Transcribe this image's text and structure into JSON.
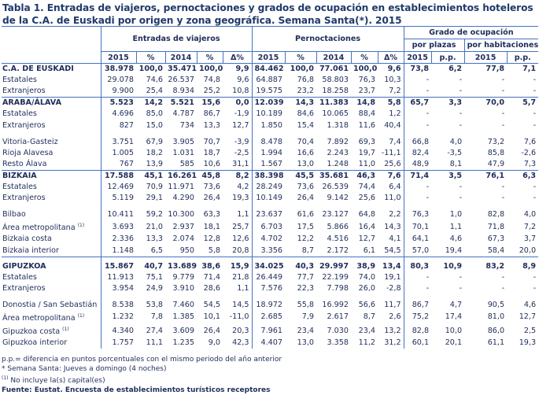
{
  "title": "Tabla 1. Entradas de viajeros, pernoctaciones y grados de ocupación en establecimientos hoteleros de la C.A. de Euskadi por origen y zona geográfica. Semana Santa(*). 2015",
  "headers": {
    "group1": "Entradas de viajeros",
    "group2": "Pernoctaciones",
    "group3": "Grado de ocupación",
    "sub1": "por plazas",
    "sub2": "por habitaciones",
    "cols": [
      "2015",
      "%",
      "2014",
      "%",
      "Δ%",
      "2015",
      "%",
      "2014",
      "%",
      "Δ%",
      "2015",
      "p.p.",
      "2015",
      "p.p."
    ]
  },
  "rows": [
    {
      "label": "C.A. DE EUSKADI",
      "bold": true,
      "values": [
        "38.978",
        "100,0",
        "35.471",
        "100,0",
        "9,9",
        "84.462",
        "100,0",
        "77.061",
        "100,0",
        "9,6",
        "73,8",
        "6,2",
        "77,8",
        "7,1"
      ]
    },
    {
      "label": "Estatales",
      "values": [
        "29.078",
        "74,6",
        "26.537",
        "74,8",
        "9,6",
        "64.887",
        "76,8",
        "58.803",
        "76,3",
        "10,3",
        "-",
        "-",
        "-",
        "-"
      ]
    },
    {
      "label": "Extranjeros",
      "values": [
        "9.900",
        "25,4",
        "8.934",
        "25,2",
        "10,8",
        "19.575",
        "23,2",
        "18.258",
        "23,7",
        "7,2",
        "-",
        "-",
        "-",
        "-"
      ]
    },
    {
      "label": "ARABA/ÁLAVA",
      "bold": true,
      "section": true,
      "values": [
        "5.523",
        "14,2",
        "5.521",
        "15,6",
        "0,0",
        "12.039",
        "14,3",
        "11.383",
        "14,8",
        "5,8",
        "65,7",
        "3,3",
        "70,0",
        "5,7"
      ]
    },
    {
      "label": "Estatales",
      "values": [
        "4.696",
        "85,0",
        "4.787",
        "86,7",
        "-1,9",
        "10.189",
        "84,6",
        "10.065",
        "88,4",
        "1,2",
        "-",
        "-",
        "-",
        "-"
      ]
    },
    {
      "label": "Extranjeros",
      "values": [
        "827",
        "15,0",
        "734",
        "13,3",
        "12,7",
        "1.850",
        "15,4",
        "1.318",
        "11,6",
        "40,4",
        "-",
        "-",
        "-",
        "-"
      ]
    },
    {
      "spacer": true
    },
    {
      "label": "Vitoria-Gasteiz",
      "values": [
        "3.751",
        "67,9",
        "3.905",
        "70,7",
        "-3,9",
        "8.478",
        "70,4",
        "7.892",
        "69,3",
        "7,4",
        "66,8",
        "4,0",
        "73,2",
        "7,6"
      ]
    },
    {
      "label": "Rioja Alavesa",
      "values": [
        "1.005",
        "18,2",
        "1.031",
        "18,7",
        "-2,5",
        "1.994",
        "16,6",
        "2.243",
        "19,7",
        "-11,1",
        "82,4",
        "-3,5",
        "85,8",
        "-2,6"
      ]
    },
    {
      "label": "Resto Álava",
      "values": [
        "767",
        "13,9",
        "585",
        "10,6",
        "31,1",
        "1.567",
        "13,0",
        "1.248",
        "11,0",
        "25,6",
        "48,9",
        "8,1",
        "47,9",
        "7,3"
      ]
    },
    {
      "label": "BIZKAIA",
      "bold": true,
      "section": true,
      "values": [
        "17.588",
        "45,1",
        "16.261",
        "45,8",
        "8,2",
        "38.398",
        "45,5",
        "35.681",
        "46,3",
        "7,6",
        "71,4",
        "3,5",
        "76,1",
        "6,3"
      ]
    },
    {
      "label": "Estatales",
      "values": [
        "12.469",
        "70,9",
        "11.971",
        "73,6",
        "4,2",
        "28.249",
        "73,6",
        "26.539",
        "74,4",
        "6,4",
        "-",
        "-",
        "-",
        "-"
      ]
    },
    {
      "label": "Extranjeros",
      "values": [
        "5.119",
        "29,1",
        "4.290",
        "26,4",
        "19,3",
        "10.149",
        "26,4",
        "9.142",
        "25,6",
        "11,0",
        "-",
        "-",
        "-",
        "-"
      ]
    },
    {
      "spacer": true
    },
    {
      "label": "Bilbao",
      "values": [
        "10.411",
        "59,2",
        "10.300",
        "63,3",
        "1,1",
        "23.637",
        "61,6",
        "23.127",
        "64,8",
        "2,2",
        "76,3",
        "1,0",
        "82,8",
        "4,0"
      ]
    },
    {
      "label": "Área metropolitana",
      "sup": "(1)",
      "values": [
        "3.693",
        "21,0",
        "2.937",
        "18,1",
        "25,7",
        "6.703",
        "17,5",
        "5.866",
        "16,4",
        "14,3",
        "70,1",
        "1,1",
        "71,8",
        "7,2"
      ]
    },
    {
      "label": "Bizkaia costa",
      "values": [
        "2.336",
        "13,3",
        "2.074",
        "12,8",
        "12,6",
        "4.702",
        "12,2",
        "4.516",
        "12,7",
        "4,1",
        "64,1",
        "4,6",
        "67,3",
        "3,7"
      ]
    },
    {
      "label": "Bizkaia interior",
      "values": [
        "1.148",
        "6,5",
        "950",
        "5,8",
        "20,8",
        "3.356",
        "8,7",
        "2.172",
        "6,1",
        "54,5",
        "57,0",
        "19,4",
        "58,4",
        "20,0"
      ]
    },
    {
      "label": "GIPUZKOA",
      "bold": true,
      "section": true,
      "gip": true,
      "values": [
        "15.867",
        "40,7",
        "13.689",
        "38,6",
        "15,9",
        "34.025",
        "40,3",
        "29.997",
        "38,9",
        "13,4",
        "80,3",
        "10,9",
        "83,2",
        "8,9"
      ]
    },
    {
      "label": "Estatales",
      "values": [
        "11.913",
        "75,1",
        "9.779",
        "71,4",
        "21,8",
        "26.449",
        "77,7",
        "22.199",
        "74,0",
        "19,1",
        "-",
        "-",
        "-",
        "-"
      ]
    },
    {
      "label": "Extranjeros",
      "values": [
        "3.954",
        "24,9",
        "3.910",
        "28,6",
        "1,1",
        "7.576",
        "22,3",
        "7.798",
        "26,0",
        "-2,8",
        "-",
        "-",
        "-",
        "-"
      ]
    },
    {
      "spacer": true
    },
    {
      "label": "Donostia / San Sebastián",
      "values": [
        "8.538",
        "53,8",
        "7.460",
        "54,5",
        "14,5",
        "18.972",
        "55,8",
        "16.992",
        "56,6",
        "11,7",
        "86,7",
        "4,7",
        "90,5",
        "4,6"
      ]
    },
    {
      "label": "Área metropolitana",
      "sup": "(1)",
      "values": [
        "1.232",
        "7,8",
        "1.385",
        "10,1",
        "-11,0",
        "2.685",
        "7,9",
        "2.617",
        "8,7",
        "2,6",
        "75,2",
        "17,4",
        "81,0",
        "12,7"
      ]
    },
    {
      "label": "Gipuzkoa costa",
      "sup": "(1)",
      "values": [
        "4.340",
        "27,4",
        "3.609",
        "26,4",
        "20,3",
        "7.961",
        "23,4",
        "7.030",
        "23,4",
        "13,2",
        "82,8",
        "10,0",
        "86,0",
        "2,5"
      ]
    },
    {
      "label": "Gipuzkoa interior",
      "values": [
        "1.757",
        "11,1",
        "1.235",
        "9,0",
        "42,3",
        "4.407",
        "13,0",
        "3.358",
        "11,2",
        "31,2",
        "60,1",
        "20,1",
        "61,1",
        "19,3"
      ]
    }
  ],
  "notes": {
    "pp": "p.p.= diferencia en puntos porcentuales con el mismo periodo del año anterior",
    "semana": "* Semana Santa: Jueves a domingo (4 noches)",
    "sup": "(1)",
    "capital": " No incluye la(s) capital(es)",
    "source": "Fuente: Eustat. Encuesta de establecimientos turísticos receptores"
  },
  "colors": {
    "text": "#1f2d5a",
    "border": "#4472c4"
  }
}
